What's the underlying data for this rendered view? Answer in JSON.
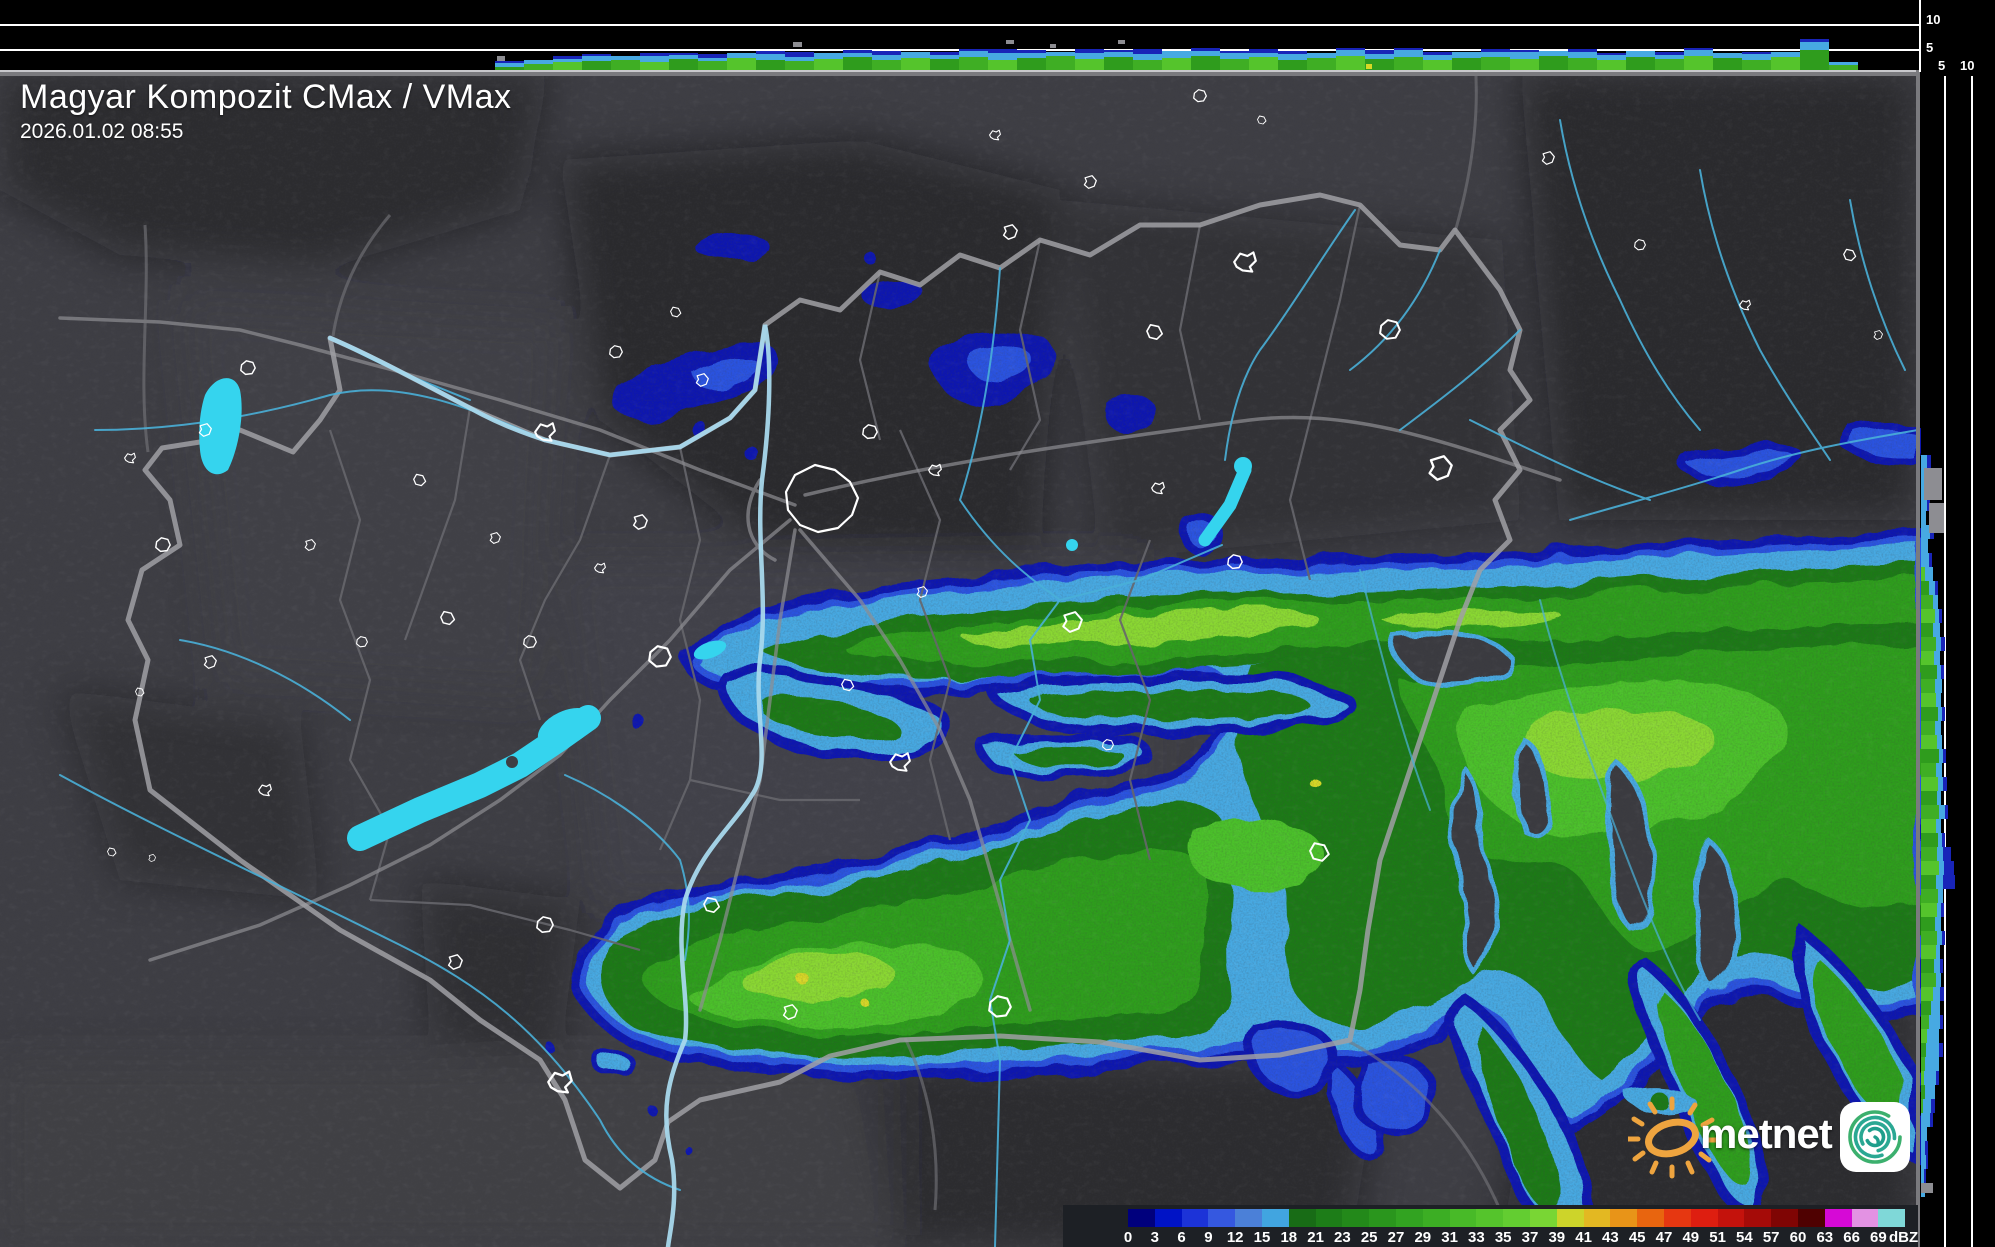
{
  "header": {
    "title": "Magyar Kompozit CMax / VMax",
    "datetime": "2026.01.02 08:55"
  },
  "top_axis": {
    "labels": [
      "10",
      "5"
    ]
  },
  "right_axis": {
    "labels": [
      "5",
      "10"
    ]
  },
  "scale": {
    "unit": "dBZ",
    "ticks": [
      "0",
      "3",
      "6",
      "9",
      "12",
      "15",
      "18",
      "21",
      "23",
      "25",
      "27",
      "29",
      "31",
      "33",
      "35",
      "37",
      "39",
      "41",
      "43",
      "45",
      "47",
      "49",
      "51",
      "54",
      "57",
      "60",
      "63",
      "66",
      "69"
    ],
    "colors": [
      "#00007d",
      "#0013c6",
      "#1c33d8",
      "#3558e0",
      "#4b80d8",
      "#41a5e0",
      "#186c16",
      "#1d7d18",
      "#23891a",
      "#2a961d",
      "#32a321",
      "#3cae24",
      "#48ba28",
      "#55c42c",
      "#63cd31",
      "#79d634",
      "#cdd42a",
      "#e3b822",
      "#e89418",
      "#e8650f",
      "#e63711",
      "#de1e10",
      "#c4120c",
      "#a50b08",
      "#7f0504",
      "#4f0101",
      "#d609d6",
      "#e392e3",
      "#7fd8d8"
    ]
  },
  "logo": {
    "text": "metnet"
  },
  "profiles": {
    "palette": {
      "greens": [
        "#2f9c1d",
        "#3fae24",
        "#55c42c"
      ],
      "sky": "#47a9e2",
      "navy": "#1824b8",
      "gray": "#8d8d92",
      "yellow": "#d8d825"
    },
    "top": {
      "segments": [
        [
          495,
          3,
          4,
          2
        ],
        [
          524,
          6,
          4,
          0
        ],
        [
          553,
          8,
          3,
          3
        ],
        [
          582,
          9,
          5,
          2
        ],
        [
          611,
          10,
          4,
          0
        ],
        [
          640,
          8,
          6,
          3
        ],
        [
          669,
          11,
          4,
          2
        ],
        [
          698,
          9,
          3,
          4
        ],
        [
          727,
          12,
          5,
          0
        ],
        [
          756,
          10,
          6,
          3
        ],
        [
          785,
          9,
          4,
          5
        ],
        [
          814,
          11,
          6,
          0
        ],
        [
          843,
          13,
          4,
          3
        ],
        [
          872,
          10,
          5,
          4
        ],
        [
          901,
          12,
          6,
          0
        ],
        [
          930,
          11,
          4,
          3
        ],
        [
          959,
          13,
          6,
          2
        ],
        [
          988,
          10,
          7,
          4
        ],
        [
          1017,
          12,
          5,
          3
        ],
        [
          1046,
          14,
          4,
          0
        ],
        [
          1075,
          11,
          6,
          4
        ],
        [
          1104,
          13,
          5,
          2
        ],
        [
          1133,
          10,
          6,
          5
        ],
        [
          1162,
          12,
          7,
          0
        ],
        [
          1191,
          14,
          5,
          3
        ],
        [
          1220,
          11,
          6,
          2
        ],
        [
          1249,
          13,
          4,
          4
        ],
        [
          1278,
          10,
          6,
          3
        ],
        [
          1307,
          12,
          5,
          0
        ],
        [
          1336,
          14,
          6,
          2
        ],
        [
          1365,
          11,
          5,
          4
        ],
        [
          1394,
          13,
          7,
          2
        ],
        [
          1423,
          10,
          5,
          3
        ],
        [
          1452,
          12,
          6,
          0
        ],
        [
          1481,
          13,
          5,
          3
        ],
        [
          1510,
          11,
          7,
          2
        ],
        [
          1539,
          14,
          5,
          0
        ],
        [
          1568,
          12,
          6,
          3
        ],
        [
          1597,
          10,
          5,
          2
        ],
        [
          1626,
          13,
          6,
          0
        ],
        [
          1655,
          11,
          4,
          3
        ],
        [
          1684,
          14,
          6,
          2
        ],
        [
          1713,
          12,
          5,
          0
        ],
        [
          1742,
          10,
          6,
          2
        ],
        [
          1771,
          13,
          5,
          0
        ],
        [
          1800,
          20,
          8,
          3
        ],
        [
          1829,
          5,
          3,
          0
        ]
      ]
    },
    "top_gray": [
      [
        497,
        56,
        8,
        5
      ],
      [
        793,
        42,
        9,
        5
      ],
      [
        1006,
        40,
        8,
        4
      ],
      [
        1050,
        44,
        6,
        4
      ],
      [
        1118,
        40,
        7,
        4
      ]
    ],
    "top_yellow": [
      [
        1366,
        64,
        6,
        5
      ]
    ],
    "right": {
      "segments": [
        [
          455,
          0,
          6,
          4
        ],
        [
          469,
          0,
          8,
          3
        ],
        [
          483,
          0,
          7,
          0
        ],
        [
          497,
          0,
          6,
          3
        ],
        [
          511,
          0,
          5,
          0
        ],
        [
          525,
          0,
          9,
          4
        ],
        [
          539,
          0,
          7,
          0
        ],
        [
          553,
          0,
          8,
          3
        ],
        [
          567,
          4,
          8,
          0
        ],
        [
          581,
          8,
          6,
          3
        ],
        [
          595,
          12,
          5,
          0
        ],
        [
          609,
          14,
          4,
          3
        ],
        [
          623,
          12,
          7,
          0
        ],
        [
          637,
          15,
          5,
          4
        ],
        [
          651,
          13,
          6,
          0
        ],
        [
          665,
          16,
          4,
          3
        ],
        [
          679,
          14,
          7,
          0
        ],
        [
          693,
          15,
          5,
          0
        ],
        [
          707,
          17,
          4,
          3
        ],
        [
          721,
          14,
          6,
          0
        ],
        [
          735,
          16,
          5,
          0
        ],
        [
          749,
          18,
          4,
          3
        ],
        [
          763,
          15,
          6,
          0
        ],
        [
          777,
          17,
          5,
          4
        ],
        [
          791,
          16,
          4,
          0
        ],
        [
          805,
          18,
          6,
          3
        ],
        [
          819,
          15,
          5,
          0
        ],
        [
          833,
          17,
          4,
          3
        ],
        [
          847,
          16,
          6,
          8
        ],
        [
          861,
          18,
          5,
          10
        ],
        [
          875,
          15,
          7,
          12
        ],
        [
          889,
          17,
          5,
          0
        ],
        [
          903,
          16,
          4,
          3
        ],
        [
          917,
          14,
          6,
          0
        ],
        [
          931,
          16,
          5,
          3
        ],
        [
          945,
          15,
          4,
          0
        ],
        [
          959,
          13,
          6,
          3
        ],
        [
          973,
          15,
          5,
          0
        ],
        [
          987,
          12,
          7,
          4
        ],
        [
          1001,
          10,
          9,
          0
        ],
        [
          1015,
          8,
          11,
          3
        ],
        [
          1029,
          6,
          12,
          0
        ],
        [
          1043,
          5,
          13,
          4
        ],
        [
          1057,
          4,
          14,
          0
        ],
        [
          1071,
          3,
          12,
          3
        ],
        [
          1085,
          4,
          10,
          0
        ],
        [
          1099,
          2,
          8,
          4
        ],
        [
          1113,
          0,
          9,
          3
        ],
        [
          1127,
          0,
          6,
          0
        ],
        [
          1141,
          0,
          4,
          3
        ],
        [
          1155,
          0,
          5,
          2
        ],
        [
          1169,
          0,
          3,
          2
        ],
        [
          1183,
          0,
          4,
          0
        ]
      ]
    },
    "right_gray": [
      [
        1924,
        468,
        18,
        32
      ],
      [
        1929,
        503,
        15,
        30
      ],
      [
        1921,
        1183,
        12,
        10
      ]
    ]
  }
}
